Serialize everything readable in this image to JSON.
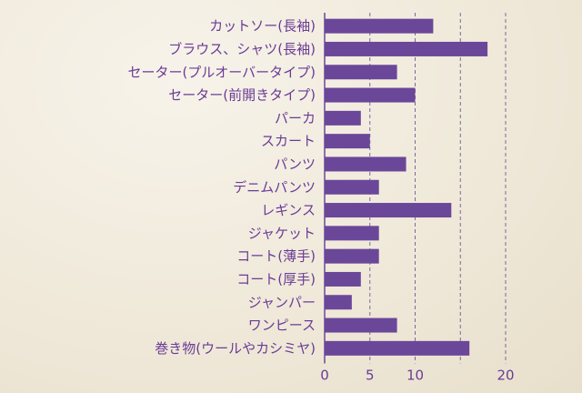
{
  "chart_data": {
    "type": "bar",
    "orientation": "horizontal",
    "categories": [
      "カットソー(長袖)",
      "ブラウス、シャツ(長袖)",
      "セーター(プルオーバータイプ)",
      "セーター(前開きタイプ)",
      "パーカ",
      "スカート",
      "パンツ",
      "デニムパンツ",
      "レギンス",
      "ジャケット",
      "コート(薄手)",
      "コート(厚手)",
      "ジャンパー",
      "ワンピース",
      "巻き物(ウールやカシミヤ)"
    ],
    "values": [
      12,
      18,
      8,
      10,
      4,
      5,
      9,
      6,
      14,
      6,
      6,
      4,
      3,
      8,
      16
    ],
    "xlim": [
      0,
      20
    ],
    "xticks": [
      0,
      5,
      10,
      20
    ],
    "gridlines": [
      5,
      10,
      15,
      20
    ],
    "grid": true,
    "bar_color": "#6b4799",
    "text_color": "#6a3b96"
  }
}
